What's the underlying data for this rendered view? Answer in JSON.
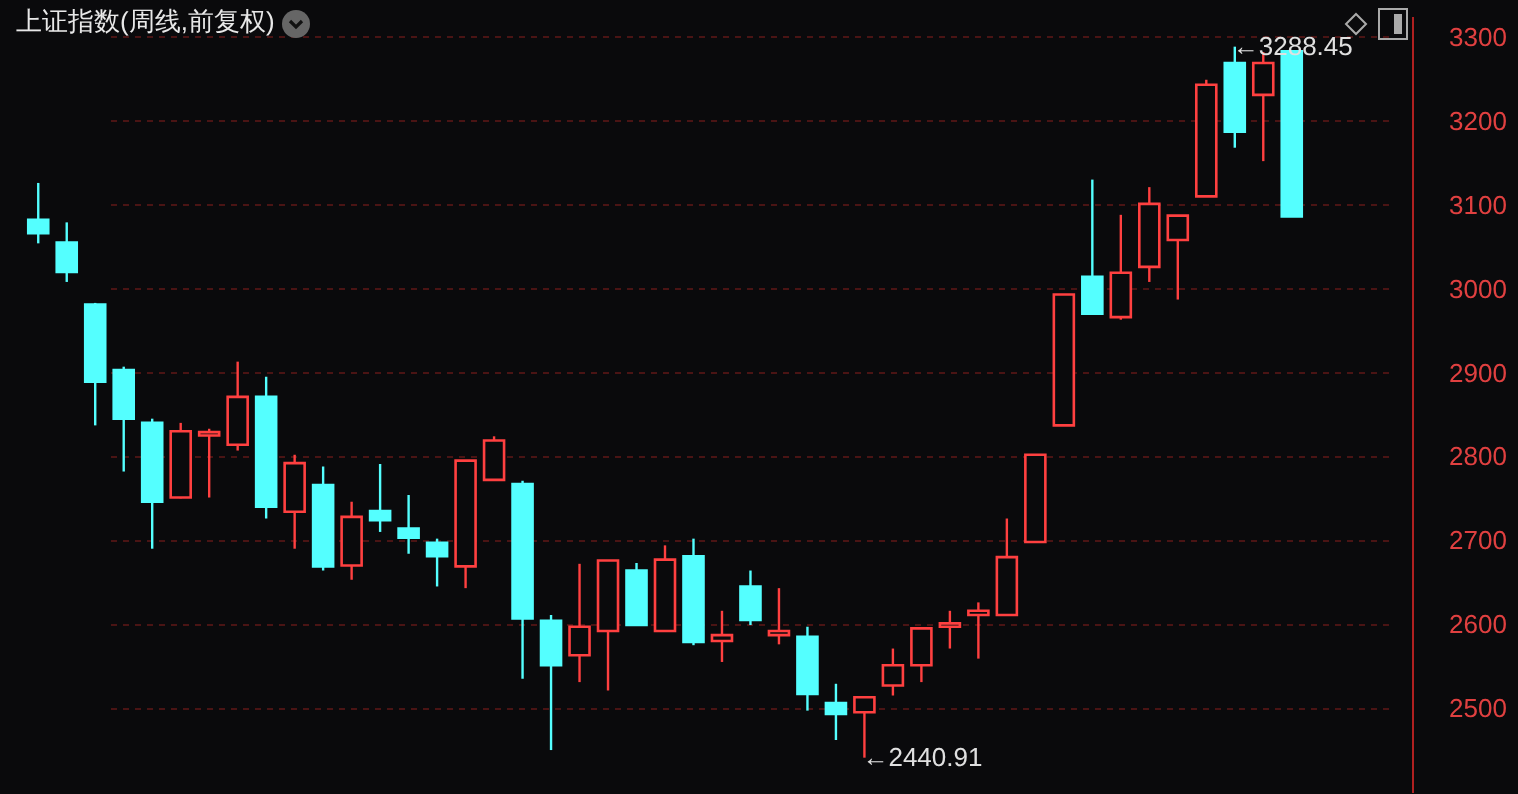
{
  "chart_data": {
    "type": "candlestick",
    "title": "上证指数(周线,前复权)",
    "categories": [
      null,
      null,
      null,
      null,
      null,
      null,
      null,
      null,
      null,
      null,
      null,
      null,
      null,
      null,
      null,
      null,
      null,
      null,
      null,
      null,
      null,
      null,
      null,
      null,
      null,
      null,
      null,
      null,
      null,
      null,
      null,
      null,
      null,
      null,
      null,
      null,
      null,
      null,
      null,
      null,
      null,
      null,
      null,
      null,
      null
    ],
    "ohlc": [
      [
        3082,
        3126,
        3054,
        3066
      ],
      [
        3055,
        3079,
        3008,
        3020
      ],
      [
        2981,
        2983,
        2837,
        2889
      ],
      [
        2903,
        2907,
        2782,
        2845
      ],
      [
        2840,
        2845,
        2690,
        2746
      ],
      [
        2751,
        2840,
        2750,
        2830
      ],
      [
        2825,
        2833,
        2751,
        2829
      ],
      [
        2814,
        2913,
        2807,
        2871
      ],
      [
        2871,
        2895,
        2726,
        2740
      ],
      [
        2734,
        2802,
        2690,
        2792
      ],
      [
        2766,
        2788,
        2664,
        2669
      ],
      [
        2670,
        2746,
        2653,
        2728
      ],
      [
        2735,
        2791,
        2710,
        2724
      ],
      [
        2714,
        2754,
        2684,
        2703
      ],
      [
        2697,
        2702,
        2645,
        2681
      ],
      [
        2669,
        2795,
        2643,
        2795
      ],
      [
        2772,
        2824,
        2772,
        2819
      ],
      [
        2767,
        2771,
        2535,
        2607
      ],
      [
        2604,
        2611,
        2450,
        2551
      ],
      [
        2563,
        2672,
        2531,
        2597
      ],
      [
        2592,
        2676,
        2521,
        2676
      ],
      [
        2664,
        2673,
        2599,
        2599
      ],
      [
        2592,
        2694,
        2592,
        2677
      ],
      [
        2681,
        2702,
        2575,
        2579
      ],
      [
        2580,
        2616,
        2555,
        2587
      ],
      [
        2645,
        2664,
        2599,
        2605
      ],
      [
        2587,
        2643,
        2576,
        2592
      ],
      [
        2585,
        2597,
        2497,
        2517
      ],
      [
        2506,
        2529,
        2462,
        2493
      ],
      [
        2495,
        2513,
        2440.91,
        2513
      ],
      [
        2527,
        2571,
        2515,
        2551
      ],
      [
        2551,
        2595,
        2531,
        2595
      ],
      [
        2597,
        2616,
        2571,
        2601
      ],
      [
        2611,
        2626,
        2559,
        2616
      ],
      [
        2611,
        2726,
        2611,
        2680
      ],
      [
        2698,
        2802,
        2698,
        2802
      ],
      [
        2837,
        2993,
        2837,
        2993
      ],
      [
        3014,
        3130,
        2969,
        2970
      ],
      [
        2966,
        3088,
        2963,
        3019
      ],
      [
        3026,
        3121,
        3008,
        3101
      ],
      [
        3058,
        3087,
        2987,
        3087
      ],
      [
        3110,
        3249,
        3110,
        3243
      ],
      [
        3269,
        3288.45,
        3168,
        3187
      ],
      [
        3231,
        3282,
        3152,
        3269
      ],
      [
        3283,
        3283,
        3086,
        3086
      ]
    ],
    "colors": [
      "#54ffff",
      "#54ffff",
      "#54ffff",
      "#54ffff",
      "#54ffff",
      "#ff4040",
      "#ff4040",
      "#ff4040",
      "#54ffff",
      "#ff4040",
      "#54ffff",
      "#ff4040",
      "#54ffff",
      "#54ffff",
      "#54ffff",
      "#ff4040",
      "#ff4040",
      "#54ffff",
      "#54ffff",
      "#ff4040",
      "#ff4040",
      "#54ffff",
      "#ff4040",
      "#54ffff",
      "#ff4040",
      "#54ffff",
      "#ff4040",
      "#54ffff",
      "#54ffff",
      "#ff4040",
      "#ff4040",
      "#ff4040",
      "#ff4040",
      "#ff4040",
      "#ff4040",
      "#ff4040",
      "#ff4040",
      "#54ffff",
      "#ff4040",
      "#ff4040",
      "#ff4040",
      "#ff4040",
      "#54ffff",
      "#ff4040",
      "#54ffff"
    ],
    "ylim": [
      2400,
      3325
    ],
    "yticks": [
      2500,
      2600,
      2700,
      2800,
      2900,
      3000,
      3100,
      3200,
      3300
    ],
    "grid": "y",
    "tick_labels": "y",
    "annotations": [
      "←3288.45",
      "←2440.91"
    ]
  }
}
